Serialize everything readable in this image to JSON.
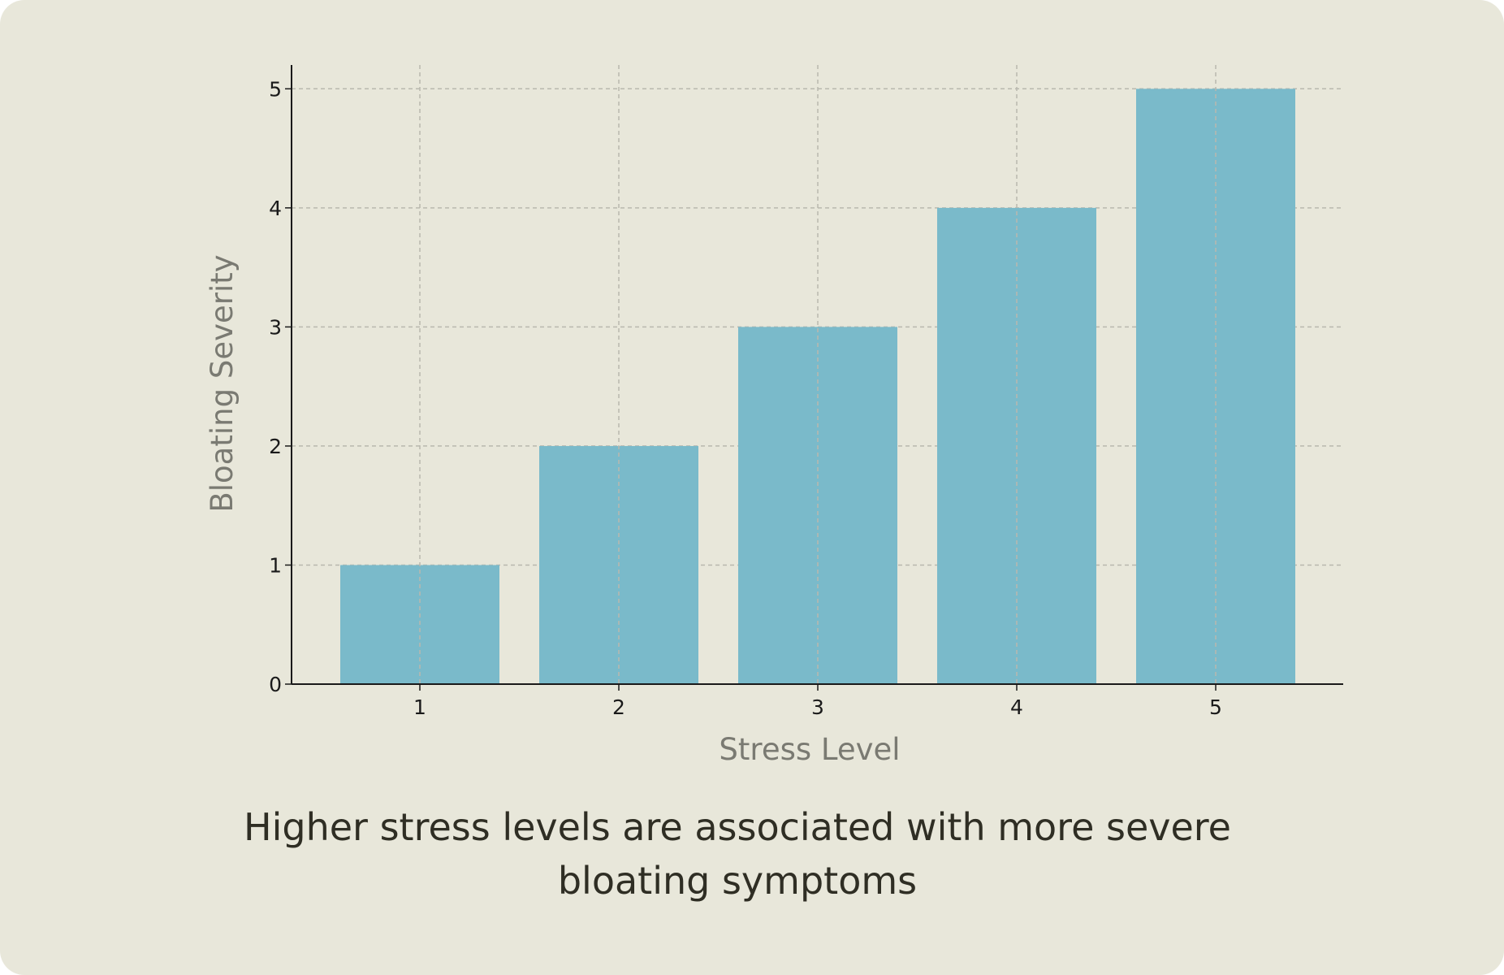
{
  "chart_data": {
    "type": "bar",
    "categories": [
      "1",
      "2",
      "3",
      "4",
      "5"
    ],
    "values": [
      1,
      2,
      3,
      4,
      5
    ],
    "title": "",
    "xlabel": "Stress Level",
    "ylabel": "Bloating Severity",
    "ylim": [
      0,
      5.2
    ],
    "yticks": [
      "0",
      "1",
      "2",
      "3",
      "4",
      "5"
    ],
    "grid": true,
    "bar_color": "#7abaca"
  },
  "caption": "Higher stress levels are associated with more severe bloating symptoms"
}
